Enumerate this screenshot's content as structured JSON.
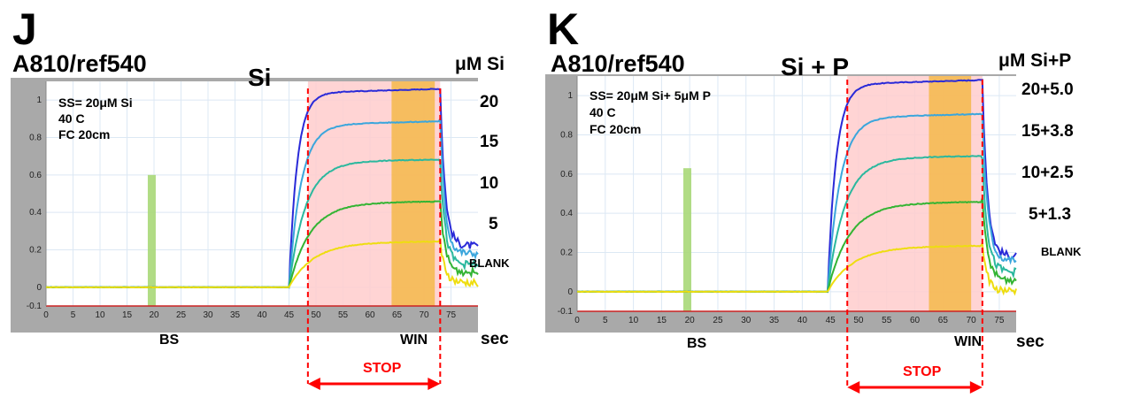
{
  "panels": [
    {
      "letter": "J",
      "ratio": "A810/ref540",
      "chem": "Si",
      "unit": "μM Si",
      "info": [
        "SS= 20μM Si",
        "40 C",
        "FC 20cm"
      ],
      "series_labels": [
        "20",
        "15",
        "10",
        "5"
      ],
      "blank_label": "BLANK",
      "bs_label": "BS",
      "win_label": "WIN",
      "sec_label": "sec",
      "stop_label": "STOP"
    },
    {
      "letter": "K",
      "ratio": "A810/ref540",
      "chem": "Si + P",
      "unit": "μM Si+P",
      "info": [
        "SS= 20μM Si+ 5μM P",
        "40 C",
        "FC 20cm"
      ],
      "series_labels": [
        "20+5.0",
        "15+3.8",
        "10+2.5",
        "5+1.3"
      ],
      "blank_label": "BLANK",
      "bs_label": "BS",
      "win_label": "WIN",
      "sec_label": "sec",
      "stop_label": "STOP"
    }
  ],
  "chart_data": [
    {
      "type": "line",
      "title": "Si",
      "xlabel": "sec",
      "ylabel": "",
      "xlim": [
        0,
        80
      ],
      "ylim": [
        -0.1,
        1.1
      ],
      "x_ticks": [
        0,
        5,
        10,
        15,
        20,
        25,
        30,
        35,
        40,
        45,
        50,
        55,
        60,
        65,
        70,
        75
      ],
      "y_ticks": [
        -0.1,
        0,
        0.2,
        0.4,
        0.6,
        0.8,
        1
      ],
      "y_tick_labels": [
        "-0.1",
        "0",
        "0.2",
        "0.4",
        "0.6",
        "0.8",
        "1"
      ],
      "grid": true,
      "injection_time": 45,
      "drop_time": 73,
      "bs_marker": {
        "x": 19.5,
        "height": 0.6,
        "color": "#a8d878"
      },
      "stop_region": {
        "start": 48.5,
        "end": 73,
        "color": "#ffcccc"
      },
      "win_region": {
        "start": 64,
        "end": 72,
        "color": "#f5b94a"
      },
      "series": [
        {
          "name": "20",
          "plateau": 1.04,
          "rise": 1.5,
          "end_value": 0.22,
          "color": "#2a2ad8"
        },
        {
          "name": "15",
          "plateau": 0.87,
          "rise": 2.2,
          "end_value": 0.18,
          "color": "#3ba6dc"
        },
        {
          "name": "10",
          "plateau": 0.67,
          "rise": 3.0,
          "end_value": 0.12,
          "color": "#2bb89e"
        },
        {
          "name": "5",
          "plateau": 0.45,
          "rise": 3.8,
          "end_value": 0.08,
          "color": "#33b433"
        },
        {
          "name": "BLANK",
          "plateau": 0.24,
          "rise": 4.5,
          "end_value": 0.02,
          "color": "#eedd10"
        }
      ]
    },
    {
      "type": "line",
      "title": "Si + P",
      "xlabel": "sec",
      "ylabel": "",
      "xlim": [
        0,
        78
      ],
      "ylim": [
        -0.1,
        1.1
      ],
      "x_ticks": [
        0,
        5,
        10,
        15,
        20,
        25,
        30,
        35,
        40,
        45,
        50,
        55,
        60,
        65,
        70,
        75
      ],
      "y_ticks": [
        -0.1,
        0,
        0.2,
        0.4,
        0.6,
        0.8,
        1
      ],
      "y_tick_labels": [
        "-0.1",
        "0",
        "0.2",
        "0.4",
        "0.6",
        "0.8",
        "1"
      ],
      "grid": true,
      "injection_time": 44.5,
      "drop_time": 72,
      "bs_marker": {
        "x": 19.5,
        "height": 0.63,
        "color": "#a8d878"
      },
      "stop_region": {
        "start": 48,
        "end": 72,
        "color": "#ffcccc"
      },
      "win_region": {
        "start": 62.5,
        "end": 70,
        "color": "#f5b94a"
      },
      "series": [
        {
          "name": "20+5.0",
          "plateau": 1.06,
          "rise": 1.5,
          "end_value": 0.18,
          "color": "#2a2ad8"
        },
        {
          "name": "15+3.8",
          "plateau": 0.89,
          "rise": 2.2,
          "end_value": 0.16,
          "color": "#3ba6dc"
        },
        {
          "name": "10+2.5",
          "plateau": 0.68,
          "rise": 3.0,
          "end_value": 0.1,
          "color": "#2bb89e"
        },
        {
          "name": "5+1.3",
          "plateau": 0.45,
          "rise": 3.8,
          "end_value": 0.06,
          "color": "#33b433"
        },
        {
          "name": "BLANK",
          "plateau": 0.23,
          "rise": 4.5,
          "end_value": 0.0,
          "color": "#eedd10"
        }
      ]
    }
  ]
}
